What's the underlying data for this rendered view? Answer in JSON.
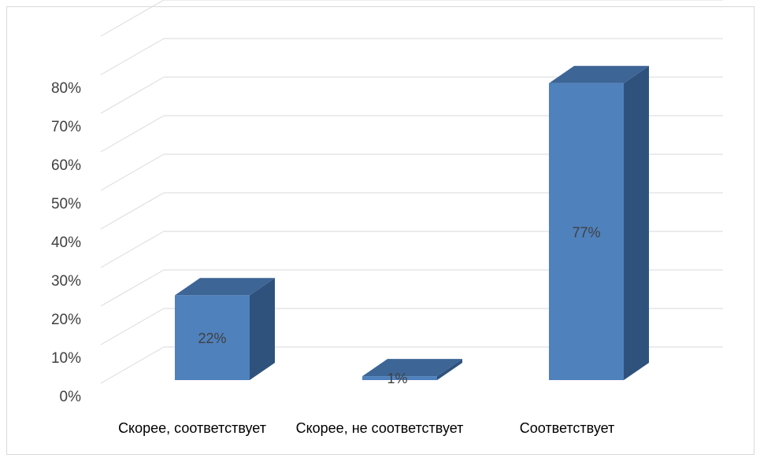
{
  "chart_data": {
    "type": "bar",
    "style": "3d-column",
    "categories": [
      "Скорее, соответствует",
      "Скорее, не соответствует",
      "Соответствует"
    ],
    "values": [
      22,
      1,
      77
    ],
    "data_labels": [
      "22%",
      "1%",
      "77%"
    ],
    "ylim": [
      0,
      80
    ],
    "y_ticks": [
      "0%",
      "10%",
      "20%",
      "30%",
      "40%",
      "50%",
      "60%",
      "70%",
      "80%"
    ],
    "grid": true,
    "legend": false,
    "colors": {
      "front": "#4f81bd",
      "top": "#3d6596",
      "side": "#2f527d",
      "grid": "#d9d9d9",
      "text": "#404040"
    }
  }
}
